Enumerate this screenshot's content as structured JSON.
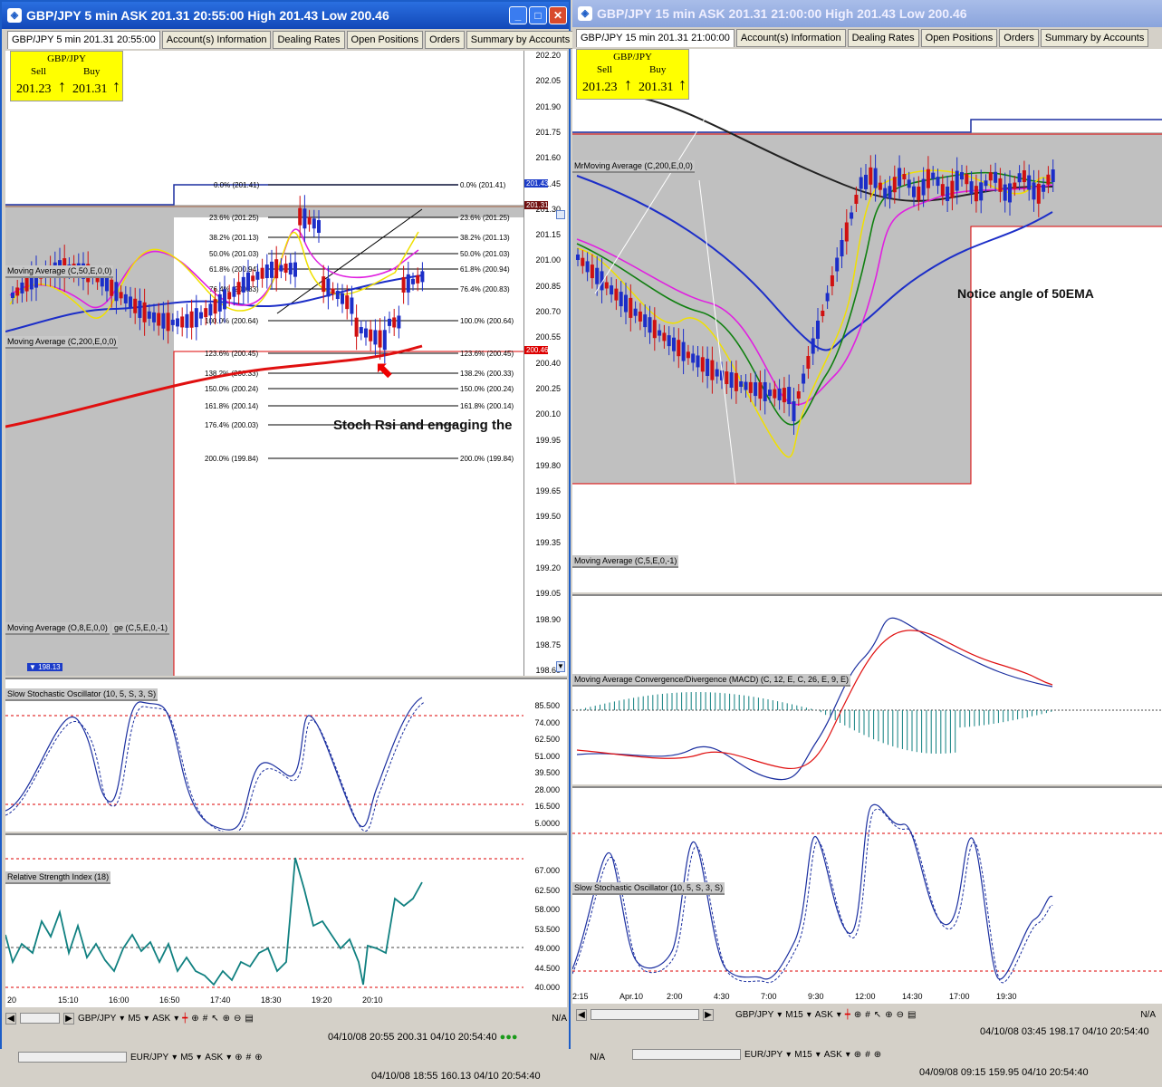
{
  "left_window": {
    "title": "GBP/JPY 5 min ASK 201.31 20:55:00 High 201.43 Low 200.46",
    "tabs": [
      "GBP/JPY 5 min 201.31 20:55:00",
      "Account(s) Information",
      "Dealing Rates",
      "Open Positions",
      "Orders",
      "Summary by Accounts"
    ],
    "ticker": {
      "symbol": "GBP/JPY",
      "sell_label": "Sell",
      "buy_label": "Buy",
      "sell": "201.23",
      "buy": "201.31",
      "arrow": "↑"
    },
    "indicators": [
      "Moving Average (C,50,E,0,0)",
      "Moving Average (C,200,E,0,0)",
      "Moving Average (O,8,E,0,0)",
      "ge (C,5,E,0,-1)",
      "Slow Stochastic Oscillator (10, 5, S, 3, S)",
      "Relative Strength Index (18)"
    ],
    "fib_levels": [
      "0.0% (201.41)",
      "23.6% (201.25)",
      "38.2% (201.13)",
      "50.0% (201.03)",
      "61.8% (200.94)",
      "76.4% (200.83)",
      "100.0% (200.64)",
      "123.6% (200.45)",
      "138.2% (200.33)",
      "150.0% (200.24)",
      "161.8% (200.14)",
      "176.4% (200.03)",
      "200.0% (199.84)"
    ],
    "price_axis": [
      "202.20",
      "202.05",
      "201.90",
      "201.75",
      "201.60",
      "201.45",
      "201.30",
      "201.15",
      "201.00",
      "200.85",
      "200.70",
      "200.55",
      "200.40",
      "200.25",
      "200.10",
      "199.95",
      "199.80",
      "199.65",
      "199.50",
      "199.35",
      "199.20",
      "199.05",
      "198.90",
      "198.75",
      "198.60"
    ],
    "price_tags": {
      "blue": "201.43",
      "dark": "201.31",
      "red": "200.46",
      "low": "198.13"
    },
    "stoch_axis": [
      "85.500",
      "74.000",
      "62.500",
      "51.000",
      "39.500",
      "28.000",
      "16.500",
      "5.0000"
    ],
    "rsi_axis": [
      "67.000",
      "62.500",
      "58.000",
      "53.500",
      "49.000",
      "44.500",
      "40.000"
    ],
    "time_axis": [
      "20",
      "15:10",
      "16:00",
      "16:50",
      "17:40",
      "18:30",
      "19:20",
      "20:10"
    ],
    "annotation": "Stoch Rsi and engaging the",
    "toolbar": {
      "symbol": "GBP/JPY",
      "period": "M5",
      "side": "ASK",
      "na": "N/A"
    },
    "status": "04/10/08 20:55  200.31  04/10 20:54:40"
  },
  "right_window": {
    "title": "GBP/JPY 15 min ASK 201.31 21:00:00 High 201.43 Low 200.46",
    "tabs": [
      "GBP/JPY 15 min 201.31 21:00:00",
      "Account(s) Information",
      "Dealing Rates",
      "Open Positions",
      "Orders",
      "Summary by Accounts"
    ],
    "ticker": {
      "symbol": "GBP/JPY",
      "sell_label": "Sell",
      "buy_label": "Buy",
      "sell": "201.23",
      "buy": "201.31",
      "arrow": "↑"
    },
    "indicators": [
      "MrMoving Average (C,200,E,0,0)",
      "Moving Average (C,5,E,0,-1)",
      "Moving Average Convergence/Divergence (MACD) (C, 12, E, C, 26, E, 9, E)",
      "Slow Stochastic Oscillator (10, 5, S, 3, S)"
    ],
    "annotation": "Notice angle of 50EMA",
    "time_axis": [
      "2:15",
      "Apr.10",
      "2:00",
      "4:30",
      "7:00",
      "9:30",
      "12:00",
      "14:30",
      "17:00",
      "19:30"
    ],
    "toolbar": {
      "symbol": "GBP/JPY",
      "period": "M15",
      "side": "ASK",
      "na": "N/A"
    },
    "status": "04/10/08 03:45  198.17  04/10 20:54:40"
  },
  "bottom_bar": {
    "left_toolbar": {
      "symbol": "EUR/JPY",
      "period": "M5",
      "side": "ASK",
      "na": "N/A"
    },
    "left_status": "04/10/08 18:55  160.13  04/10 20:54:40",
    "right_toolbar": {
      "symbol": "EUR/JPY",
      "period": "M15",
      "side": "ASK"
    },
    "right_status": "04/09/08 09:15  159.95  04/10 20:54:40"
  }
}
